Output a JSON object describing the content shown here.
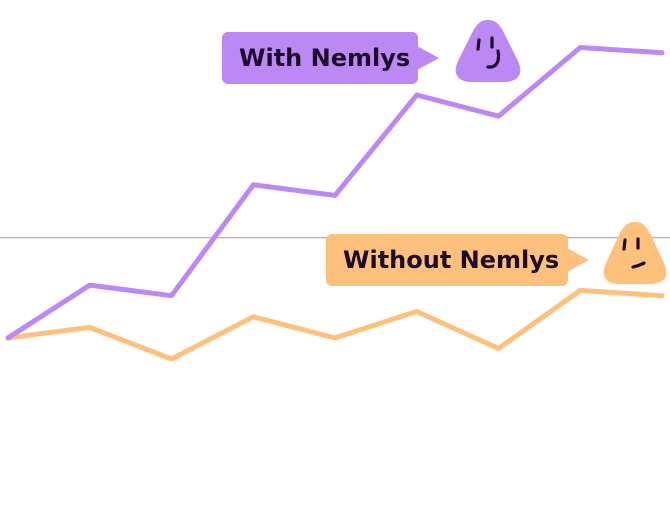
{
  "chart_data": {
    "type": "line",
    "title": "",
    "xlabel": "",
    "ylabel": "",
    "x": [
      0,
      1,
      2,
      3,
      4,
      5,
      6,
      7,
      8
    ],
    "ylim": [
      0,
      100
    ],
    "reference_line": 55,
    "grid": false,
    "series": [
      {
        "name": "With Nemlys",
        "color": "#bb88f4",
        "values": [
          36,
          46,
          44,
          65,
          63,
          82,
          78,
          91,
          90
        ]
      },
      {
        "name": "Without Nemlys",
        "color": "#fec07d",
        "values": [
          36,
          38,
          32,
          40,
          36,
          41,
          34,
          45,
          44
        ]
      }
    ]
  },
  "labels": {
    "with": "With Nemlys",
    "without": "Without Nemlys"
  },
  "icons": {
    "with": "happy-face-icon",
    "without": "neutral-face-icon"
  }
}
